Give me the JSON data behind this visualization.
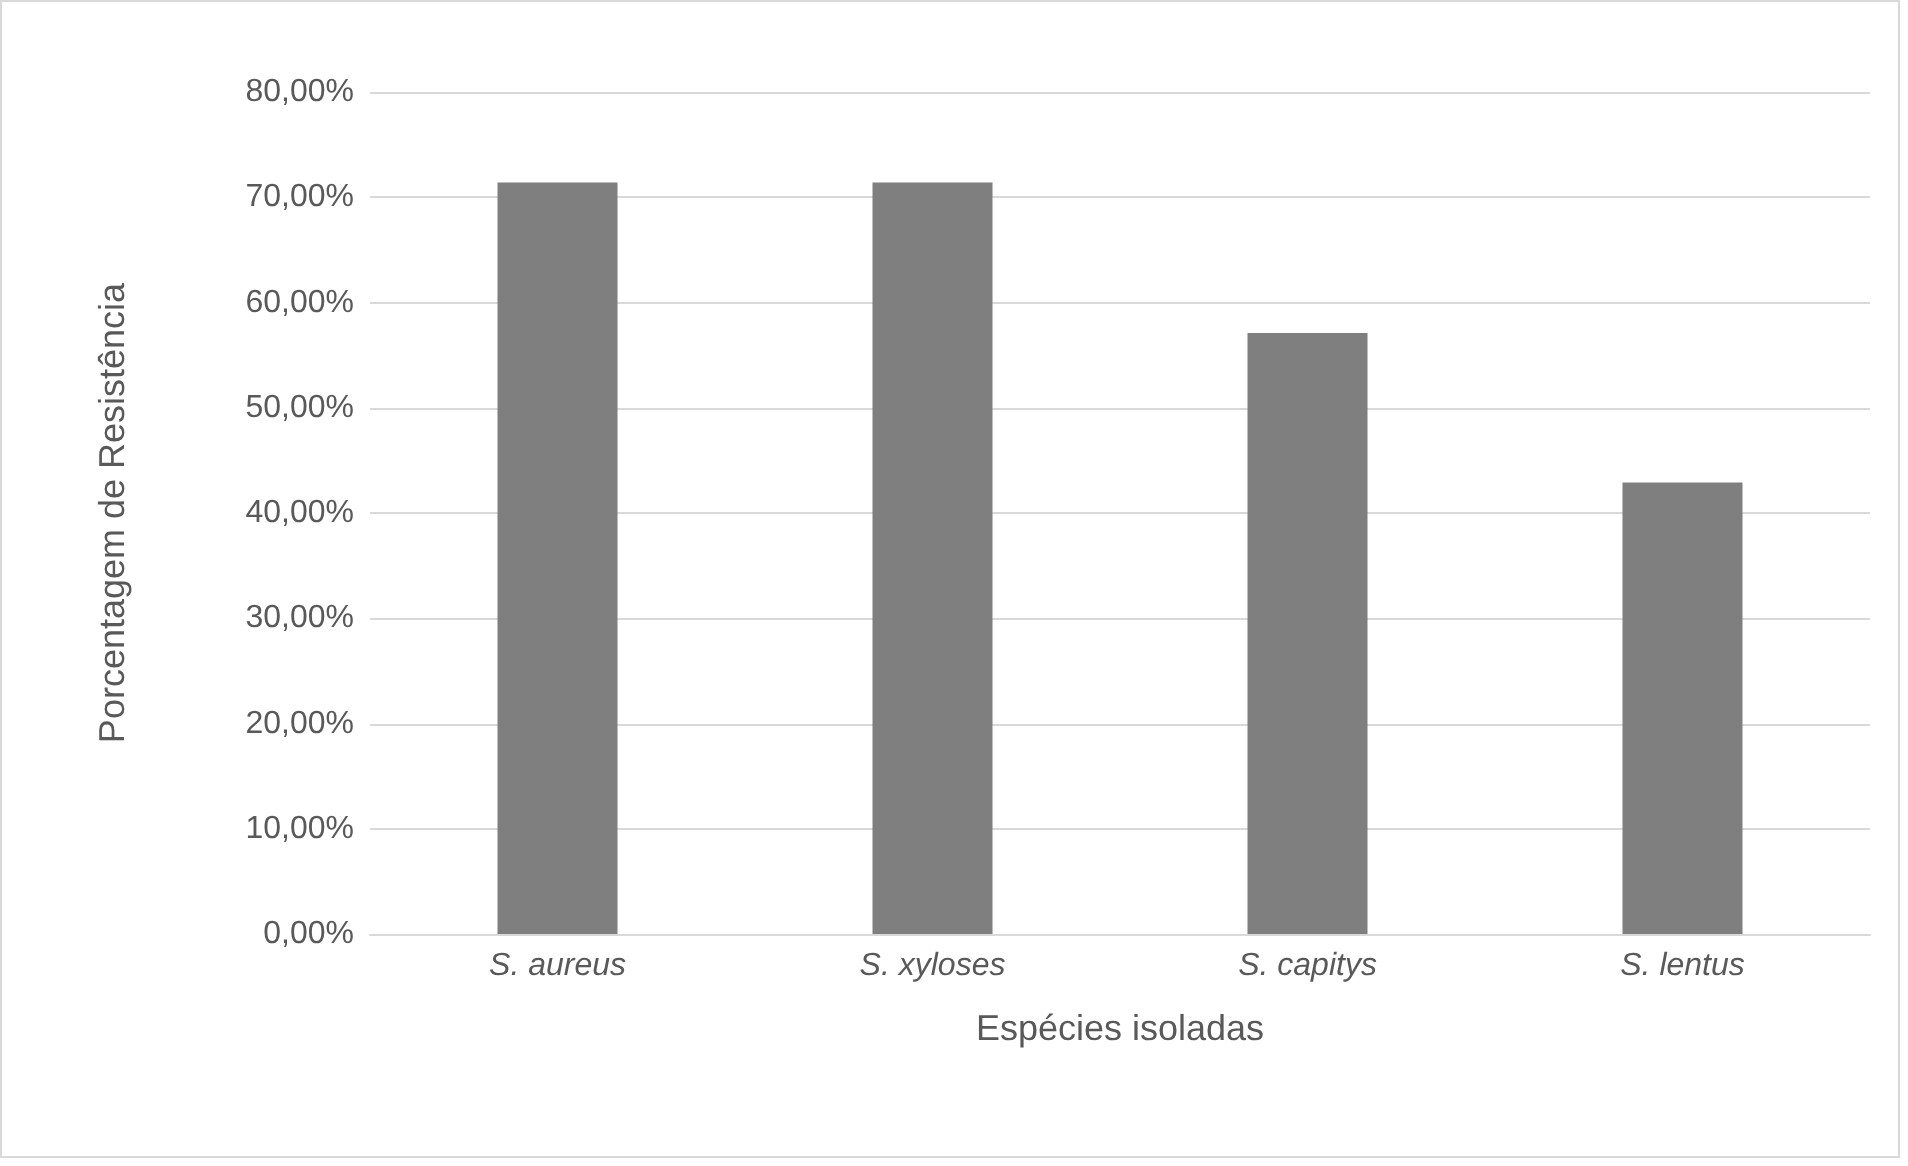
{
  "chart_data": {
    "type": "bar",
    "xlabel": "Espécies isoladas",
    "ylabel": "Porcentagem de Resistência",
    "categories": [
      "S. aureus",
      "S. xyloses",
      "S. capitys",
      "S. lentus"
    ],
    "values": [
      71.4,
      71.4,
      57.1,
      42.9
    ],
    "color": "#7f7f7f",
    "ylim": [
      0,
      80
    ],
    "yticks": [
      {
        "value": 0,
        "label": "0,00%"
      },
      {
        "value": 10,
        "label": "10,00%"
      },
      {
        "value": 20,
        "label": "20,00%"
      },
      {
        "value": 30,
        "label": "30,00%"
      },
      {
        "value": 40,
        "label": "40,00%"
      },
      {
        "value": 50,
        "label": "50,00%"
      },
      {
        "value": 60,
        "label": "60,00%"
      },
      {
        "value": 70,
        "label": "70,00%"
      },
      {
        "value": 80,
        "label": "80,00%"
      }
    ],
    "grid": "y"
  }
}
